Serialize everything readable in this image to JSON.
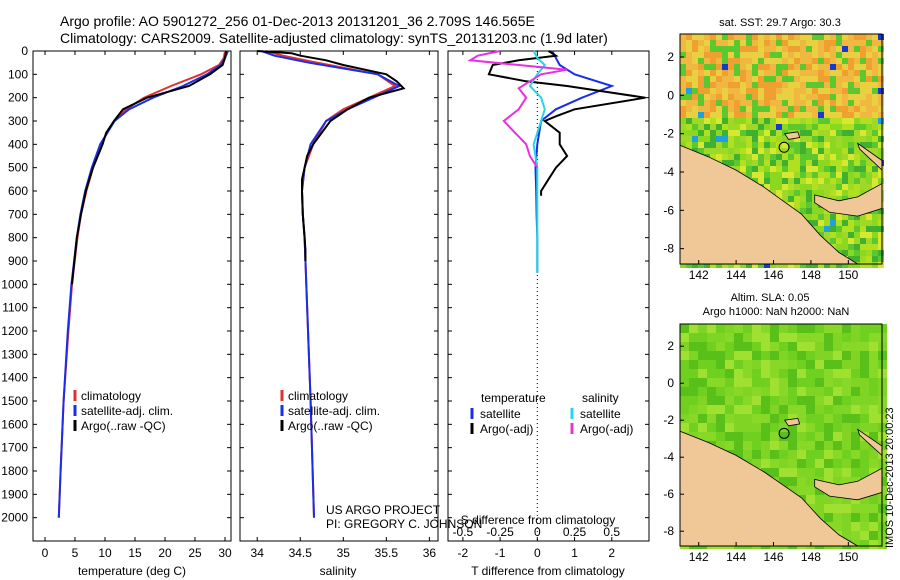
{
  "header": {
    "line1": "Argo profile: AO 5901272_256 01-Dec-2013 20131201_36 2.709S 146.565E",
    "line2": "Climatology: CARS2009. Satellite-adjusted climatology: synTS_20131203.nc (1.9d later)"
  },
  "colors": {
    "climatology": "#e03030",
    "satellite": "#1a2ee8",
    "argo": "#000000",
    "sal_satellite": "#22d8e8",
    "sal_argo": "#e830e0",
    "land": "#f0c898"
  },
  "chart_data": [
    {
      "type": "line",
      "name": "temperature-profile",
      "xlabel": "temperature (deg C)",
      "ylabel": "",
      "xlim": [
        -2,
        31
      ],
      "ylim": [
        2100,
        0
      ],
      "xticks": [
        0,
        5,
        10,
        15,
        20,
        25,
        30
      ],
      "xtick_labels": [
        "0",
        "5",
        "10",
        "15",
        "20",
        "25",
        "30"
      ],
      "yticks": [
        0,
        100,
        200,
        300,
        400,
        500,
        600,
        700,
        800,
        900,
        1000,
        1100,
        1200,
        1300,
        1400,
        1500,
        1600,
        1700,
        1800,
        1900,
        2000
      ],
      "ytick_labels": [
        "0",
        "100",
        "200",
        "300",
        "400",
        "500",
        "600",
        "700",
        "800",
        "900",
        "1000",
        "1100",
        "1200",
        "1300",
        "1400",
        "1500",
        "1600",
        "1700",
        "1800",
        "1900",
        "2000"
      ],
      "legend_position": "lower-center",
      "series": [
        {
          "name": "climatology",
          "color": "#e03030",
          "depth": [
            0,
            30,
            60,
            100,
            150,
            200,
            250,
            300,
            400,
            500,
            600,
            700,
            800,
            1000,
            1200,
            1500,
            1800,
            2000
          ],
          "values": [
            30,
            29.8,
            29,
            26,
            21,
            16.5,
            13.5,
            11.5,
            9.3,
            8,
            6.9,
            6,
            5.4,
            4.5,
            3.9,
            3.1,
            2.6,
            2.3
          ]
        },
        {
          "name": "satellite-adj. clim.",
          "color": "#1a2ee8",
          "depth": [
            0,
            30,
            60,
            100,
            150,
            200,
            250,
            300,
            400,
            500,
            600,
            700,
            800,
            1000,
            1200,
            1500,
            1800,
            2000
          ],
          "values": [
            30.5,
            30,
            29.3,
            27,
            23,
            18,
            14,
            11.6,
            9.2,
            7.8,
            6.7,
            5.9,
            5.3,
            4.4,
            3.8,
            3.1,
            2.6,
            2.3
          ]
        },
        {
          "name": "Argo(..raw -QC)",
          "color": "#000000",
          "depth": [
            0,
            30,
            60,
            100,
            150,
            200,
            250,
            300,
            350,
            400,
            500,
            600,
            700,
            800,
            900,
            1000
          ],
          "values": [
            30.2,
            30,
            29.6,
            27.5,
            24,
            17,
            13,
            11.5,
            10.2,
            9.6,
            8,
            6.8,
            6,
            5.3,
            4.9,
            4.5
          ]
        }
      ]
    },
    {
      "type": "line",
      "name": "salinity-profile",
      "xlabel": "salinity",
      "ylabel": "",
      "xlim": [
        33.8,
        36.1
      ],
      "ylim": [
        2100,
        0
      ],
      "xticks": [
        34,
        34.5,
        35,
        35.5,
        36
      ],
      "xtick_labels": [
        "34",
        "34.5",
        "35",
        "35.5",
        "36"
      ],
      "legend_position": "lower-center",
      "series": [
        {
          "name": "climatology",
          "color": "#e03030",
          "depth": [
            0,
            20,
            50,
            100,
            150,
            200,
            250,
            300,
            400,
            500,
            600,
            700,
            800,
            1000,
            1500,
            2000
          ],
          "values": [
            34.1,
            34.3,
            34.7,
            35.4,
            35.6,
            35.3,
            35.0,
            34.8,
            34.65,
            34.55,
            34.52,
            34.53,
            34.55,
            34.57,
            34.62,
            34.66
          ]
        },
        {
          "name": "satellite-adj. clim.",
          "color": "#1a2ee8",
          "depth": [
            0,
            20,
            50,
            100,
            150,
            200,
            250,
            300,
            400,
            500,
            600,
            700,
            800,
            1000,
            1500,
            2000
          ],
          "values": [
            34.05,
            34.2,
            34.6,
            35.4,
            35.65,
            35.35,
            35.05,
            34.8,
            34.62,
            34.55,
            34.52,
            34.53,
            34.55,
            34.57,
            34.62,
            34.66
          ]
        },
        {
          "name": "Argo(..raw -QC)",
          "color": "#000000",
          "depth": [
            0,
            10,
            20,
            40,
            60,
            100,
            130,
            160,
            200,
            250,
            300,
            350,
            400,
            450,
            500,
            550,
            600,
            700,
            800,
            850,
            900
          ],
          "values": [
            34.0,
            34.4,
            34.5,
            34.8,
            35.0,
            35.5,
            35.62,
            35.7,
            35.3,
            35.05,
            34.85,
            34.75,
            34.65,
            34.58,
            34.55,
            34.52,
            34.52,
            34.53,
            34.55,
            34.56,
            34.56
          ]
        }
      ]
    },
    {
      "type": "line",
      "name": "difference-profile",
      "xlabel": "T difference from climatology",
      "xlabel_top": "S difference from climatology",
      "xlim": [
        -2.4,
        3
      ],
      "ylim": [
        2100,
        0
      ],
      "xticks": [
        -2,
        -1,
        0,
        1,
        2
      ],
      "xtick_labels": [
        "-2",
        "-1",
        "0",
        "1",
        "2"
      ],
      "sxticks": [
        -2,
        -1,
        0,
        1,
        2
      ],
      "sxtick_labels": [
        "-0.5",
        "-0.25",
        "0",
        "0.25",
        "0.5"
      ],
      "legend_position": "lower-center",
      "legend_titles": [
        "temperature",
        "salinity"
      ],
      "series": [
        {
          "name": "satellite",
          "group": "temperature",
          "color": "#1a2ee8",
          "depth": [
            0,
            30,
            60,
            100,
            150,
            200,
            250,
            300,
            400,
            500,
            600,
            700,
            800,
            900,
            950
          ],
          "values": [
            0.4,
            0.5,
            0.6,
            1.0,
            2.0,
            1.2,
            0.5,
            0.1,
            0,
            -0.05,
            -0.03,
            -0.02,
            0,
            0,
            0
          ]
        },
        {
          "name": "Argo(-adj)",
          "group": "temperature",
          "color": "#000000",
          "depth": [
            0,
            20,
            40,
            60,
            100,
            130,
            150,
            200,
            250,
            280,
            300,
            350,
            400,
            450,
            500,
            550,
            600,
            620
          ],
          "values": [
            0.3,
            0.5,
            -0.5,
            -1.2,
            -1.3,
            -0.3,
            0.8,
            2.9,
            1,
            0.5,
            0.2,
            0.6,
            0.6,
            0.8,
            0.5,
            0.3,
            0.1,
            0.1
          ]
        },
        {
          "name": "satellite",
          "group": "salinity",
          "color": "#22d8e8",
          "depth": [
            0,
            30,
            60,
            100,
            150,
            200,
            250,
            300,
            400,
            500,
            600,
            700,
            800,
            900,
            950
          ],
          "values": [
            -0.1,
            0,
            0.2,
            0,
            -0.2,
            0.1,
            0.2,
            0.1,
            -0.1,
            0,
            0,
            0,
            0,
            0,
            0
          ]
        },
        {
          "name": "Argo(-adj)",
          "group": "salinity",
          "color": "#e830e0",
          "depth": [
            0,
            20,
            40,
            60,
            80,
            100,
            130,
            160,
            200,
            250,
            300,
            350,
            400,
            450,
            500
          ],
          "values": [
            -1.0,
            -1.6,
            -1.8,
            -0.5,
            0.8,
            0.1,
            -0.2,
            -0.5,
            -0.3,
            -0.5,
            -0.9,
            -0.6,
            -0.3,
            -0.2,
            0
          ]
        }
      ]
    },
    {
      "type": "heatmap",
      "name": "sst-map",
      "title": "sat. SST: 29.7 Argo: 30.3",
      "xticks": [
        142,
        144,
        146,
        148,
        150
      ],
      "xtick_labels": [
        "142",
        "144",
        "146",
        "148",
        "150"
      ],
      "yticks": [
        2,
        0,
        -2,
        -4,
        -6,
        -8
      ],
      "ytick_labels": [
        "2",
        "0",
        "-2",
        "-4",
        "-6",
        "-8"
      ],
      "xlim": [
        141,
        151.8
      ],
      "ylim": [
        -8.8,
        3.2
      ],
      "float_position": {
        "lon": 146.565,
        "lat": -2.709
      }
    },
    {
      "type": "heatmap",
      "name": "sla-map",
      "title_line1": "Altim. SLA: 0.05",
      "title_line2": "Argo h1000: NaN h2000: NaN",
      "xticks": [
        142,
        144,
        146,
        148,
        150
      ],
      "xtick_labels": [
        "142",
        "144",
        "146",
        "148",
        "150"
      ],
      "yticks": [
        2,
        0,
        -2,
        -4,
        -6,
        -8
      ],
      "ytick_labels": [
        "2",
        "0",
        "-2",
        "-4",
        "-6",
        "-8"
      ],
      "xlim": [
        141,
        151.8
      ],
      "ylim": [
        -8.8,
        3.2
      ],
      "float_position": {
        "lon": 146.565,
        "lat": -2.709
      }
    }
  ],
  "credits": {
    "line1": "US ARGO PROJECT",
    "line2": "PI: GREGORY C. JOHNSON"
  },
  "sidebar_stamp": "IMOS 10-Dec-2013 20:00:23"
}
